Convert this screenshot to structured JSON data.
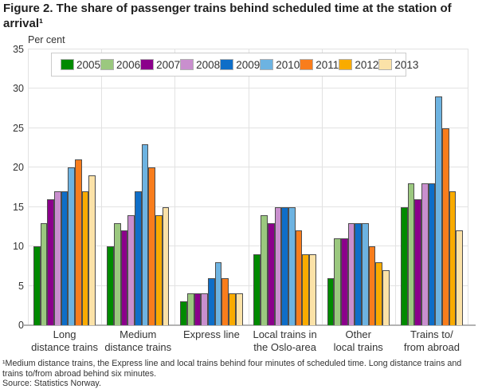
{
  "title": "Figure 2. The share of passenger trains behind scheduled time at the station of arrival¹",
  "footnote": "¹Medium distance trains, the Express line and local trains behind four minutes of scheduled time. Long distance trains and trains to/from abroad behind six minutes.",
  "source": "Source: Statistics Norway.",
  "chart_data": {
    "type": "bar",
    "title": "Figure 2. The share of passenger trains behind scheduled time at the station of arrival¹",
    "ylabel": "Per cent",
    "xlabel": "",
    "ylim": [
      0,
      35
    ],
    "yticks": [
      0,
      5,
      10,
      15,
      20,
      25,
      30,
      35
    ],
    "grid": true,
    "legend_position": "top-inside",
    "categories": [
      "Long distance trains",
      "Medium distance trains",
      "Express line",
      "Local trains in the Oslo-area",
      "Other local trains",
      "Trains to/ from abroad"
    ],
    "category_label_lines": [
      [
        "Long",
        "distance trains"
      ],
      [
        "Medium",
        "distance trains"
      ],
      [
        "Express line"
      ],
      [
        "Local trains in",
        "the Oslo-area"
      ],
      [
        "Other",
        "local trains"
      ],
      [
        "Trains to/",
        "from abroad"
      ]
    ],
    "series": [
      {
        "name": "2005",
        "color": "#008a00",
        "values": [
          10,
          10,
          3,
          9,
          6,
          15
        ]
      },
      {
        "name": "2006",
        "color": "#9bc87f",
        "values": [
          13,
          13,
          4,
          14,
          11,
          18
        ]
      },
      {
        "name": "2007",
        "color": "#8b008b",
        "values": [
          16,
          12,
          4,
          13,
          11,
          16
        ]
      },
      {
        "name": "2008",
        "color": "#c98fce",
        "values": [
          17,
          14,
          4,
          15,
          13,
          18
        ]
      },
      {
        "name": "2009",
        "color": "#0e6ec8",
        "values": [
          17,
          17,
          6,
          15,
          13,
          18
        ]
      },
      {
        "name": "2010",
        "color": "#6db3e1",
        "values": [
          20,
          23,
          8,
          15,
          13,
          29
        ]
      },
      {
        "name": "2011",
        "color": "#f97d1c",
        "values": [
          21,
          20,
          6,
          12,
          10,
          25
        ]
      },
      {
        "name": "2012",
        "color": "#f9ab00",
        "values": [
          17,
          14,
          4,
          9,
          8,
          17
        ]
      },
      {
        "name": "2013",
        "color": "#fbe2a8",
        "values": [
          19,
          15,
          4,
          9,
          7,
          12
        ]
      }
    ],
    "colors": {
      "bar_stroke": "#4d4d4d",
      "gridline": "#e2e2e2",
      "axis_line": "#b3b3b3",
      "text": "#333333"
    }
  }
}
